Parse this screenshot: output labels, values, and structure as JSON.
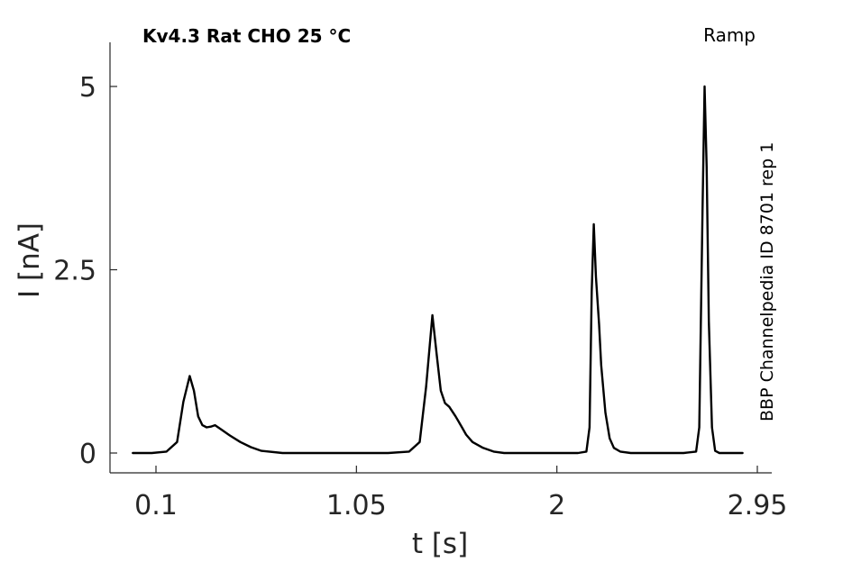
{
  "chart_data": {
    "type": "line",
    "title": "Kv4.3  Rat  CHO  25 °C",
    "protocol": "Ramp",
    "annotation": "BBP Channelpedia ID 8701 rep 1",
    "xlabel": "t [s]",
    "ylabel": "I [nA]",
    "xlim": [
      0.1,
      2.95
    ],
    "ylim": [
      0,
      5
    ],
    "xticks": [
      0.1,
      1.05,
      2,
      2.95
    ],
    "xtick_labels": [
      "0.1",
      "1.05",
      "2",
      "2.95"
    ],
    "yticks": [
      0,
      2.5,
      5
    ],
    "ytick_labels": [
      "0",
      "2.5",
      "5"
    ],
    "grid": false,
    "line_color": "#000000",
    "series": [
      {
        "name": "",
        "x": [
          -0.01,
          0.08,
          0.15,
          0.2,
          0.23,
          0.26,
          0.28,
          0.3,
          0.32,
          0.34,
          0.36,
          0.38,
          0.41,
          0.45,
          0.5,
          0.55,
          0.6,
          0.7,
          0.8,
          0.9,
          1.0,
          1.1,
          1.2,
          1.3,
          1.35,
          1.38,
          1.41,
          1.43,
          1.45,
          1.47,
          1.49,
          1.52,
          1.55,
          1.57,
          1.6,
          1.65,
          1.7,
          1.75,
          1.8,
          1.9,
          2.0,
          2.1,
          2.14,
          2.155,
          2.165,
          2.175,
          2.185,
          2.2,
          2.21,
          2.23,
          2.25,
          2.27,
          2.3,
          2.35,
          2.4,
          2.5,
          2.6,
          2.66,
          2.675,
          2.69,
          2.7,
          2.71,
          2.72,
          2.735,
          2.75,
          2.77,
          2.8,
          2.88
        ],
        "y": [
          0.0,
          0.0,
          0.02,
          0.15,
          0.7,
          1.05,
          0.85,
          0.5,
          0.38,
          0.35,
          0.36,
          0.38,
          0.32,
          0.24,
          0.15,
          0.08,
          0.03,
          0.0,
          0.0,
          0.0,
          0.0,
          0.0,
          0.0,
          0.02,
          0.15,
          0.9,
          1.88,
          1.35,
          0.85,
          0.68,
          0.63,
          0.5,
          0.35,
          0.25,
          0.15,
          0.07,
          0.02,
          0.0,
          0.0,
          0.0,
          0.0,
          0.0,
          0.02,
          0.35,
          2.2,
          3.12,
          2.4,
          1.75,
          1.2,
          0.55,
          0.2,
          0.07,
          0.02,
          0.0,
          0.0,
          0.0,
          0.0,
          0.02,
          0.35,
          3.3,
          5.0,
          3.9,
          1.8,
          0.35,
          0.03,
          0.0,
          0.0,
          0.0
        ]
      }
    ]
  }
}
